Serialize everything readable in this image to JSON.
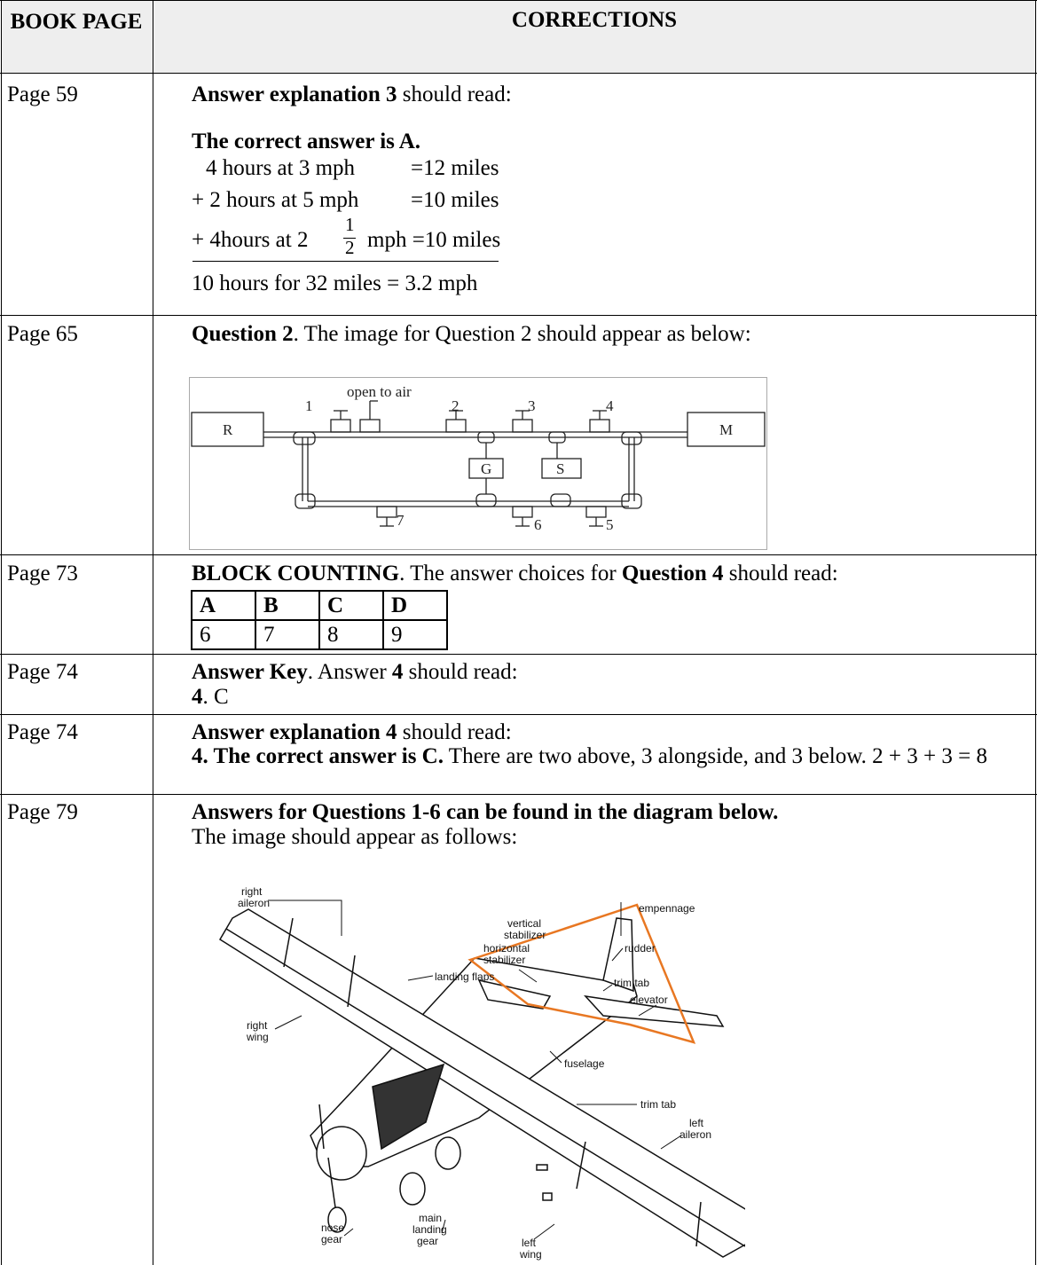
{
  "header": {
    "page_col": "BOOK PAGE",
    "corrections_col": "CORRECTIONS"
  },
  "rows": [
    {
      "page": "Page 59",
      "title": "Answer explanation 3",
      "title_rest": "should read:",
      "answer": "The correct answer is A.",
      "calc": [
        [
          "4 hours at 3 mph",
          "=12 miles"
        ],
        [
          "+ 2 hours at 5 mph",
          "=10 miles"
        ]
      ],
      "calc3": {
        "text": "+ 4hours at 2",
        "num": "1",
        "den": "2",
        "rest": "mph =10 miles"
      },
      "total": "10 hours for 32 miles = 3.2 mph"
    },
    {
      "page": "Page 65",
      "title": "Question 2",
      "title_rest": ". The image for Question 2 should appear as below:",
      "diagram": {
        "open": "open to air",
        "valves": [
          "1",
          "2",
          "3",
          "4",
          "5",
          "6",
          "7"
        ],
        "left": "R",
        "right": "M",
        "g": "G",
        "s": "S"
      }
    },
    {
      "page": "Page 73",
      "title": "BLOCK COUNTING",
      "title_rest": ". The answer choices for",
      "title2": "Question 4",
      "title2_rest": "should read:",
      "choices": {
        "header": [
          "A",
          "B",
          "C",
          "D"
        ],
        "values": [
          "6",
          "7",
          "8",
          "9"
        ]
      }
    },
    {
      "page": "Page 74",
      "title": "Answer Key",
      "title_rest": ". Answer",
      "title2": "4",
      "title2_rest": "should read:",
      "answer_num": "4",
      "answer_rest": ". C"
    },
    {
      "page": "Page 74",
      "title": "Answer explanation 4",
      "title_rest": "should read:",
      "answer": "4. The correct answer is C.",
      "answer_rest": "There are two above, 3 alongside, and 3 below. 2 + 3 + 3 = 8"
    },
    {
      "page": "Page 79",
      "title": "Answers for Questions 1-6 can be found in the diagram below.",
      "subtitle": "The image should appear as follows:",
      "labels": {
        "right_aileron": [
          "right",
          "aileron"
        ],
        "vertical_stabilizer": [
          "vertical",
          "stabilizer"
        ],
        "horizontal_stabilizer": [
          "horizontal",
          "stabilizer"
        ],
        "empennage": "empennage",
        "rudder": "rudder",
        "trim_tab_top": "trim tab",
        "elevator": "elevator",
        "right_wing": [
          "right",
          "wing"
        ],
        "landing_flaps": "landing flaps",
        "fuselage": "fuselage",
        "trim_tab_bottom": "trim tab",
        "left_aileron": [
          "left",
          "aileron"
        ],
        "nose_gear": [
          "nose",
          "gear"
        ],
        "main_landing_gear": [
          "main",
          "landing",
          "gear"
        ],
        "left_wing": [
          "left",
          "wing"
        ]
      }
    }
  ]
}
